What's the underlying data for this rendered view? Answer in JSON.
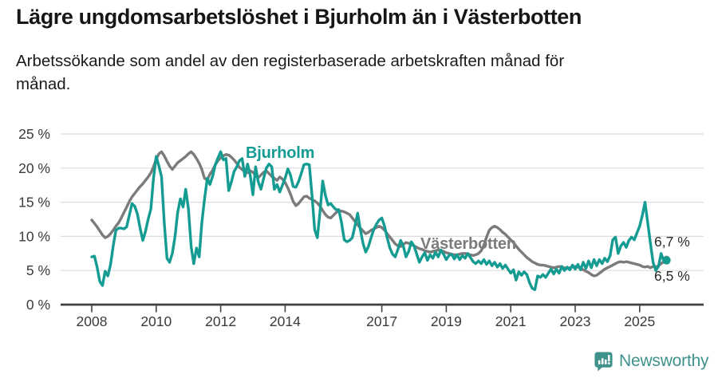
{
  "header": {
    "title": "Lägre ungdomsarbetslöshet i Bjurholm än i Västerbotten",
    "subtitle": "Arbetssökande som andel av den registerbaserade arbetskraften månad för månad."
  },
  "chart_data": {
    "type": "line",
    "title": "Lägre ungdomsarbetslöshet i Bjurholm än i Västerbotten",
    "subtitle_lines": [
      "Arbetssökande som andel av den registerbaserade arbetskraften månad för",
      "månad."
    ],
    "x_unit": "month",
    "x_start": "2008-01",
    "x_end": "2025-11",
    "grid": true,
    "y_range": [
      0,
      25
    ],
    "y_ticks": [
      {
        "value": 0,
        "label": "0 %"
      },
      {
        "value": 5,
        "label": "5 %"
      },
      {
        "value": 10,
        "label": "10 %"
      },
      {
        "value": 15,
        "label": "15 %"
      },
      {
        "value": 20,
        "label": "20 %"
      },
      {
        "value": 25,
        "label": "25 %"
      }
    ],
    "x_ticks": [
      {
        "year": 2008,
        "label": "2008"
      },
      {
        "year": 2010,
        "label": "2010"
      },
      {
        "year": 2012,
        "label": "2012"
      },
      {
        "year": 2014,
        "label": "2014"
      },
      {
        "year": 2017,
        "label": "2017"
      },
      {
        "year": 2019,
        "label": "2019"
      },
      {
        "year": 2021,
        "label": "2021"
      },
      {
        "year": 2023,
        "label": "2023"
      },
      {
        "year": 2025,
        "label": "2025"
      }
    ],
    "series": [
      {
        "id": "bjurholm",
        "name": "Bjurholm",
        "color": "#149c93",
        "end_label": "6,5 %",
        "final_value": 6.5,
        "values": [
          7.0,
          7.1,
          5.5,
          3.4,
          2.8,
          4.9,
          4.2,
          5.9,
          8.6,
          10.9,
          11.2,
          11.2,
          11.1,
          11.4,
          13.1,
          14.8,
          14.4,
          13.3,
          11.2,
          9.4,
          10.7,
          12.5,
          14.0,
          18.5,
          21.7,
          20.3,
          18.7,
          12.0,
          6.8,
          6.2,
          7.5,
          10.0,
          13.5,
          15.5,
          14.3,
          16.9,
          14.0,
          8.5,
          6.0,
          8.3,
          7.0,
          12.0,
          15.5,
          18.5,
          17.6,
          18.8,
          20.5,
          21.5,
          22.4,
          21.2,
          21.4,
          16.7,
          18.0,
          19.5,
          20.2,
          21.1,
          21.4,
          18.8,
          20.6,
          19.0,
          16.1,
          20.2,
          18.0,
          16.9,
          18.5,
          20.0,
          20.6,
          20.2,
          16.9,
          17.6,
          16.5,
          17.5,
          18.5,
          19.9,
          19.0,
          17.3,
          17.2,
          18.0,
          19.2,
          20.5,
          20.6,
          20.5,
          16.0,
          11.0,
          9.8,
          13.7,
          18.1,
          16.0,
          14.6,
          14.8,
          14.3,
          13.9,
          13.9,
          12.0,
          9.5,
          9.2,
          9.4,
          9.8,
          11.5,
          13.4,
          11.0,
          9.0,
          7.7,
          8.5,
          9.8,
          11.0,
          11.8,
          12.4,
          12.7,
          11.5,
          9.8,
          8.3,
          7.4,
          7.0,
          8.1,
          9.4,
          8.6,
          7.0,
          7.8,
          9.2,
          8.6,
          7.4,
          6.2,
          7.0,
          7.6,
          6.5,
          7.3,
          6.8,
          7.7,
          7.0,
          8.0,
          7.4,
          6.6,
          7.2,
          7.4,
          6.7,
          7.3,
          6.6,
          7.2,
          6.8,
          7.5,
          6.9,
          6.3,
          6.0,
          6.4,
          6.0,
          6.6,
          5.9,
          6.4,
          5.7,
          6.2,
          5.5,
          6.0,
          5.3,
          5.8,
          5.2,
          4.6,
          5.1,
          3.6,
          4.8,
          4.3,
          4.8,
          4.4,
          3.2,
          2.4,
          2.2,
          4.2,
          4.0,
          4.4,
          4.0,
          4.6,
          5.2,
          4.5,
          5.2,
          4.6,
          5.6,
          5.0,
          5.5,
          5.1,
          5.8,
          5.2,
          5.9,
          5.1,
          6.2,
          5.3,
          6.4,
          5.4,
          6.6,
          5.7,
          6.6,
          6.0,
          6.8,
          6.3,
          7.2,
          9.5,
          9.9,
          7.5,
          8.6,
          9.1,
          8.4,
          9.4,
          9.9,
          9.5,
          10.5,
          11.5,
          13.1,
          15.0,
          12.0,
          9.0,
          6.2,
          5.0,
          5.6,
          7.5,
          6.4,
          6.5
        ]
      },
      {
        "id": "vasterbotten",
        "name": "Västerbotten",
        "color": "#7b7b7b",
        "end_label": "6,7 %",
        "final_value": 6.7,
        "values": [
          12.4,
          11.9,
          11.4,
          10.8,
          10.2,
          9.8,
          10.0,
          10.4,
          10.9,
          11.5,
          12.0,
          12.7,
          13.5,
          14.3,
          15.1,
          15.8,
          16.3,
          16.8,
          17.3,
          17.7,
          18.2,
          18.7,
          19.3,
          20.2,
          21.3,
          22.1,
          22.4,
          21.8,
          21.0,
          20.3,
          19.8,
          20.3,
          20.8,
          21.1,
          21.4,
          21.7,
          22.1,
          22.4,
          22.0,
          21.4,
          20.7,
          19.8,
          18.5,
          18.3,
          19.1,
          19.7,
          20.5,
          21.1,
          21.5,
          21.8,
          22.0,
          21.9,
          21.6,
          21.2,
          20.7,
          20.1,
          19.8,
          19.5,
          19.3,
          19.6,
          19.4,
          18.9,
          18.6,
          19.0,
          19.4,
          19.6,
          19.2,
          18.8,
          18.5,
          18.2,
          18.7,
          18.4,
          17.9,
          17.1,
          16.2,
          15.1,
          14.5,
          14.8,
          15.3,
          15.8,
          15.9,
          15.6,
          15.4,
          15.2,
          14.9,
          14.4,
          13.8,
          13.2,
          12.8,
          12.7,
          13.1,
          13.5,
          13.7,
          13.7,
          13.6,
          13.4,
          13.2,
          12.7,
          12.2,
          11.7,
          11.2,
          10.8,
          10.4,
          10.6,
          10.9,
          11.1,
          11.3,
          11.5,
          11.3,
          10.9,
          10.4,
          9.9,
          9.4,
          8.9,
          8.6,
          8.5,
          8.8,
          9.1,
          9.0,
          8.8,
          8.6,
          8.4,
          8.2,
          8.1,
          7.9,
          7.8,
          7.7,
          7.8,
          7.9,
          8.0,
          7.9,
          7.8,
          7.6,
          7.5,
          7.4,
          7.3,
          7.3,
          7.4,
          7.5,
          7.5,
          7.4,
          7.3,
          7.2,
          7.3,
          7.5,
          7.9,
          8.7,
          9.9,
          10.9,
          11.3,
          11.5,
          11.3,
          11.0,
          10.6,
          10.3,
          9.9,
          9.5,
          9.1,
          8.6,
          8.1,
          7.7,
          7.3,
          6.9,
          6.6,
          6.3,
          6.1,
          5.9,
          5.8,
          5.8,
          5.7,
          5.6,
          5.5,
          5.4,
          5.5,
          5.6,
          5.5,
          5.4,
          5.3,
          5.4,
          5.5,
          5.6,
          5.5,
          5.3,
          5.1,
          4.9,
          4.7,
          4.4,
          4.2,
          4.3,
          4.6,
          4.9,
          5.2,
          5.4,
          5.6,
          5.8,
          6.0,
          6.2,
          6.3,
          6.2,
          6.3,
          6.2,
          6.1,
          6.0,
          5.9,
          5.8,
          5.6,
          5.5,
          5.6,
          5.4,
          5.6,
          5.5,
          5.7,
          6.0,
          6.3,
          6.7
        ]
      }
    ],
    "colors": {
      "grid": "#dcdcdc",
      "axis": "#3f3f3f",
      "tick_text": "#3a3a3a",
      "end_label_text": "#2b2b2b"
    }
  },
  "footer": {
    "brand": "Newsworthy",
    "brand_color": "#3f918b"
  }
}
